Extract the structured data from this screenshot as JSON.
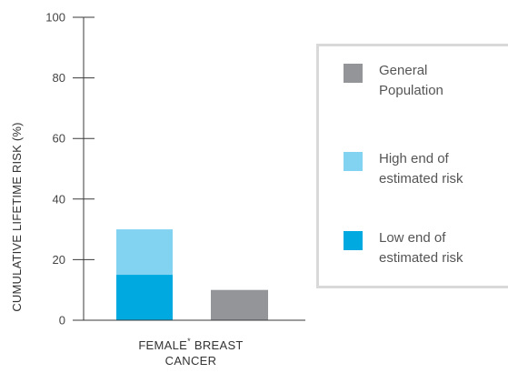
{
  "chart_data": {
    "type": "bar",
    "ylabel": "CUMULATIVE LIFETIME RISK (%)",
    "ylim": [
      0,
      100
    ],
    "yticks": [
      0,
      20,
      40,
      60,
      80,
      100
    ],
    "grid": false,
    "legend_position": "right",
    "category": {
      "line1_before": "FEMALE",
      "superscript": "*",
      "line1_after": " BREAST",
      "line2": "CANCER"
    },
    "series": [
      {
        "name": "Low end of estimated risk",
        "label_lines": [
          "Low end of",
          "estimated risk"
        ],
        "value": 15,
        "color": "#00a9e0"
      },
      {
        "name": "High end of estimated risk",
        "label_lines": [
          "High end of",
          "estimated risk"
        ],
        "value": 30,
        "color": "#82d3f2"
      },
      {
        "name": "General Population",
        "label_lines": [
          "General",
          "Population"
        ],
        "value": 10,
        "color": "#939598"
      }
    ],
    "legend_order": [
      2,
      1,
      0
    ]
  }
}
